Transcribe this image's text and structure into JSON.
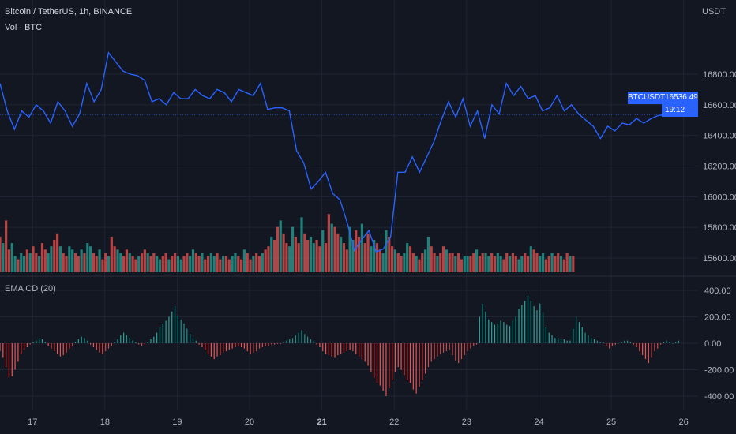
{
  "header": {
    "symbol_title": "Bitcoin / TetherUS, 1h, BINANCE",
    "volume_label": "Vol · BTC",
    "currency": "USDT"
  },
  "indicator": {
    "label": "EMA CD (20)"
  },
  "price_tag": {
    "symbol": "BTCUSDT",
    "price": "16536.49",
    "countdown": "19:12"
  },
  "axes": {
    "price_ticks": [
      "16800.00",
      "16600.00",
      "16400.00",
      "16200.00",
      "16000.00",
      "15800.00",
      "15600.00"
    ],
    "indicator_ticks": [
      "400.00",
      "200.00",
      "0.00",
      "-200.00",
      "-400.00"
    ],
    "date_ticks": [
      "17",
      "18",
      "19",
      "20",
      "21",
      "22",
      "23",
      "24",
      "25",
      "26"
    ]
  },
  "colors": {
    "background": "#131722",
    "price_line": "#2962ff",
    "up": "#26a69a",
    "down": "#ef5350",
    "grid": "#1f2433"
  },
  "chart_data": [
    {
      "type": "line",
      "title": "Bitcoin / TetherUS, 1h, BINANCE",
      "xlabel": "",
      "ylabel": "USDT",
      "ylim": [
        15530,
        16990
      ],
      "x_range": [
        16.55,
        26.2
      ],
      "x": [
        16.55,
        16.65,
        16.75,
        16.85,
        16.95,
        17.05,
        17.15,
        17.25,
        17.35,
        17.45,
        17.55,
        17.65,
        17.75,
        17.85,
        17.95,
        18.05,
        18.15,
        18.25,
        18.35,
        18.45,
        18.55,
        18.65,
        18.75,
        18.85,
        18.95,
        19.05,
        19.15,
        19.25,
        19.35,
        19.45,
        19.55,
        19.65,
        19.75,
        19.85,
        19.95,
        20.05,
        20.15,
        20.25,
        20.35,
        20.45,
        20.55,
        20.65,
        20.75,
        20.85,
        20.95,
        21.05,
        21.15,
        21.25,
        21.35,
        21.45,
        21.55,
        21.65,
        21.75,
        21.85,
        21.95,
        22.05,
        22.15,
        22.25,
        22.35,
        22.45,
        22.55,
        22.65,
        22.75,
        22.85,
        22.95,
        23.05,
        23.15,
        23.25,
        23.35,
        23.45,
        23.55,
        23.65,
        23.75,
        23.85,
        23.95,
        24.05,
        24.15,
        24.25,
        24.35,
        24.45,
        24.55,
        24.65,
        24.75,
        24.85,
        24.95,
        25.05,
        25.15,
        25.25,
        25.35,
        25.45,
        25.55,
        25.65,
        25.75
      ],
      "series": [
        {
          "values": [
            16740,
            16560,
            16440,
            16560,
            16520,
            16600,
            16560,
            16480,
            16620,
            16560,
            16460,
            16540,
            16740,
            16620,
            16700,
            16940,
            16880,
            16820,
            16800,
            16790,
            16760,
            16620,
            16640,
            16600,
            16680,
            16640,
            16640,
            16700,
            16660,
            16640,
            16700,
            16680,
            16620,
            16700,
            16680,
            16660,
            16740,
            16570,
            16580,
            16580,
            16560,
            16300,
            16220,
            16050,
            16100,
            16160,
            16020,
            15980,
            15830,
            15650,
            15720,
            15780,
            15640,
            15660,
            15740,
            16160,
            16160,
            16260,
            16160,
            16260,
            16360,
            16500,
            16620,
            16520,
            16640,
            16460,
            16560,
            16380,
            16600,
            16540,
            16740,
            16660,
            16720,
            16640,
            16660,
            16560,
            16580,
            16660,
            16560,
            16600,
            16540,
            16500,
            16460,
            16380,
            16460,
            16430,
            16480,
            16470,
            16510,
            16480,
            16510,
            16530,
            16536
          ]
        }
      ]
    },
    {
      "type": "bar",
      "title": "Vol · BTC",
      "x_range": [
        16.55,
        26.2
      ],
      "x_start": 16.55,
      "x_step": 0.0417,
      "values": [
        0.55,
        0.45,
        0.8,
        0.35,
        0.45,
        0.25,
        0.2,
        0.3,
        0.25,
        0.35,
        0.3,
        0.4,
        0.3,
        0.25,
        0.45,
        0.35,
        0.3,
        0.4,
        0.5,
        0.6,
        0.4,
        0.3,
        0.25,
        0.4,
        0.35,
        0.3,
        0.25,
        0.35,
        0.3,
        0.45,
        0.4,
        0.3,
        0.25,
        0.35,
        0.2,
        0.3,
        0.25,
        0.55,
        0.4,
        0.35,
        0.3,
        0.25,
        0.35,
        0.3,
        0.25,
        0.2,
        0.25,
        0.3,
        0.35,
        0.3,
        0.25,
        0.3,
        0.25,
        0.2,
        0.25,
        0.3,
        0.2,
        0.25,
        0.3,
        0.25,
        0.2,
        0.25,
        0.3,
        0.25,
        0.35,
        0.3,
        0.25,
        0.3,
        0.2,
        0.25,
        0.3,
        0.25,
        0.3,
        0.2,
        0.25,
        0.25,
        0.2,
        0.25,
        0.3,
        0.25,
        0.2,
        0.35,
        0.3,
        0.2,
        0.25,
        0.3,
        0.25,
        0.3,
        0.35,
        0.4,
        0.55,
        0.5,
        0.7,
        0.8,
        0.6,
        0.45,
        0.4,
        0.7,
        0.55,
        0.45,
        0.85,
        0.6,
        0.5,
        0.55,
        0.45,
        0.5,
        0.4,
        0.65,
        0.45,
        0.9,
        0.75,
        0.7,
        0.6,
        0.55,
        0.45,
        0.35,
        0.7,
        0.5,
        0.65,
        0.55,
        0.75,
        0.45,
        0.6,
        0.4,
        0.5,
        0.45,
        0.35,
        0.3,
        0.65,
        0.55,
        0.4,
        0.35,
        0.3,
        0.25,
        0.3,
        0.45,
        0.4,
        0.3,
        0.25,
        0.2,
        0.3,
        0.35,
        0.55,
        0.4,
        0.3,
        0.25,
        0.3,
        0.4,
        0.35,
        0.3,
        0.3,
        0.25,
        0.3,
        0.2,
        0.25,
        0.25,
        0.25,
        0.3,
        0.35,
        0.25,
        0.3,
        0.3,
        0.25,
        0.3,
        0.25,
        0.3,
        0.25,
        0.2,
        0.3,
        0.25,
        0.3,
        0.25,
        0.2,
        0.25,
        0.3,
        0.25,
        0.4,
        0.35,
        0.3,
        0.25,
        0.3,
        0.2,
        0.25,
        0.3,
        0.25,
        0.3,
        0.25,
        0.2,
        0.3,
        0.25,
        0.25
      ],
      "directions": "dudduuduududdudduuddudduudduduudduddudduuddudduddudduuddudduudduuddudduuddudduuddudduddudduddudduuddudduuddudduddudduuddudduudduuddudduuddudduuddudduddudduuddudduudduuddudduuddudduuddudduddud"
    },
    {
      "type": "bar",
      "title": "EMA CD (20)",
      "ylim": [
        -470,
        470
      ],
      "x_start": 16.55,
      "x_step": 0.0417,
      "values": [
        -60,
        -110,
        -180,
        -260,
        -250,
        -200,
        -140,
        -80,
        -50,
        -30,
        -10,
        10,
        20,
        40,
        30,
        10,
        -20,
        -40,
        -60,
        -80,
        -100,
        -90,
        -70,
        -40,
        -20,
        10,
        30,
        50,
        40,
        20,
        -10,
        -30,
        -50,
        -70,
        -80,
        -60,
        -40,
        -20,
        10,
        30,
        60,
        80,
        60,
        40,
        20,
        10,
        -10,
        -20,
        -10,
        10,
        30,
        50,
        80,
        120,
        150,
        170,
        200,
        240,
        280,
        210,
        180,
        150,
        110,
        70,
        40,
        20,
        -10,
        -30,
        -50,
        -80,
        -100,
        -120,
        -100,
        -90,
        -70,
        -60,
        -50,
        -40,
        -30,
        -20,
        -30,
        -40,
        -60,
        -80,
        -70,
        -60,
        -40,
        -30,
        -20,
        -20,
        -10,
        -10,
        -5,
        -5,
        10,
        20,
        30,
        40,
        60,
        80,
        100,
        70,
        50,
        30,
        20,
        -10,
        -30,
        -60,
        -80,
        -90,
        -100,
        -110,
        -90,
        -80,
        -70,
        -60,
        -50,
        -60,
        -80,
        -100,
        -120,
        -140,
        -170,
        -220,
        -260,
        -300,
        -320,
        -360,
        -400,
        -340,
        -280,
        -220,
        -180,
        -200,
        -240,
        -280,
        -300,
        -350,
        -380,
        -330,
        -280,
        -230,
        -180,
        -140,
        -120,
        -100,
        -80,
        -70,
        -60,
        -50,
        -90,
        -130,
        -150,
        -120,
        -90,
        -60,
        -40,
        -20,
        -10,
        200,
        300,
        240,
        180,
        160,
        140,
        150,
        170,
        160,
        140,
        130,
        170,
        200,
        260,
        290,
        320,
        360,
        320,
        280,
        250,
        300,
        230,
        120,
        80,
        60,
        40,
        40,
        30,
        30,
        20,
        20,
        110,
        200,
        160,
        120,
        80,
        60,
        40,
        30,
        20,
        10,
        10,
        -20,
        -40,
        -20,
        -10,
        0,
        10,
        20,
        20,
        10,
        -10,
        -30,
        -60,
        -90,
        -120,
        -150,
        -110,
        -60,
        -40,
        -10,
        10,
        20,
        10,
        0,
        10,
        20
      ],
      "directions": "dddddddddduuuuuudddddddduuuuudddddduuuuuuudduuuuuuuuuuuuuuuudddddddddddddddddddddddduuuuuuuuuddddddddddddddddddddddddddddddddddddddddddddddddduuuuuuuuuuuuuuuuuuuuuuuuuuuuuuuuuuuuuuuuuuuuuuuuuduudduudduuuudddddddddddduuuuuuuu"
    }
  ]
}
